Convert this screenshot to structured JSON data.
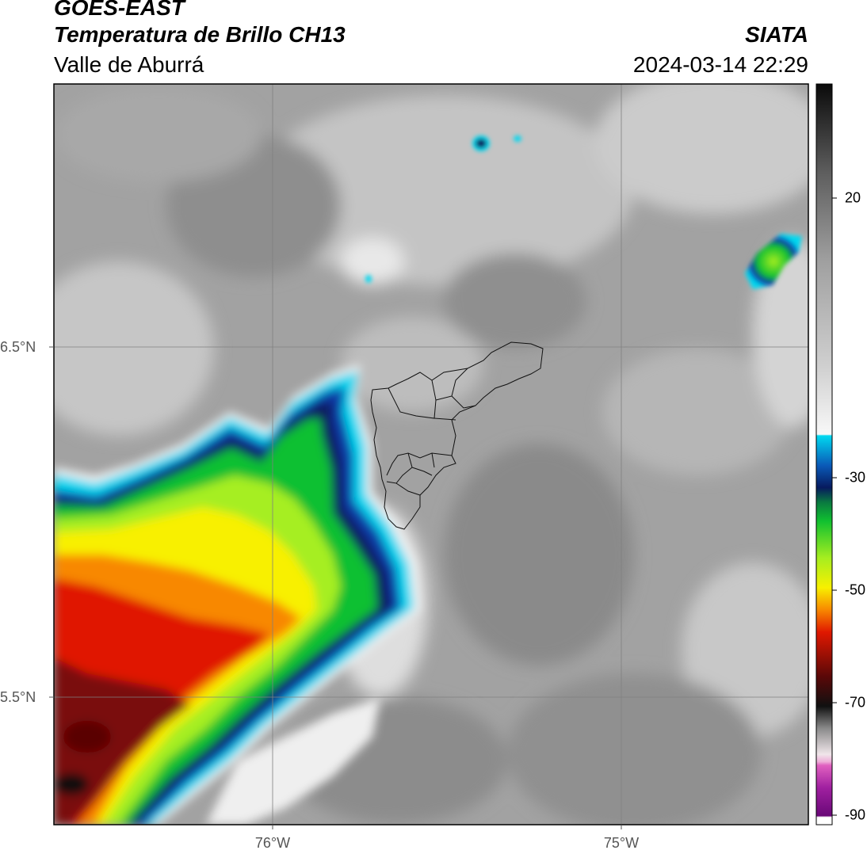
{
  "header": {
    "satellite": "GOES-EAST",
    "product": "Temperatura de Brillo CH13",
    "region": "Valle de Aburrá",
    "brand": "SIATA",
    "datetime": "2024-03-14 22:29"
  },
  "map": {
    "lat_labels": [
      "6.5°N",
      "5.5°N"
    ],
    "lon_labels": [
      "76°W",
      "75°W"
    ]
  },
  "colorbar": {
    "tick_labels": [
      "20",
      "-30",
      "-50",
      "-70",
      "-90"
    ],
    "colors": {
      "warm_gray": "#9a9a9a",
      "white": "#f4f4f4",
      "cyan": "#00d8f0",
      "blue": "#0a3aa8",
      "navy": "#071a5e",
      "green": "#10c030",
      "lime": "#a6ee20",
      "yellow": "#f8f000",
      "orange": "#f88800",
      "red": "#e01800",
      "darkred": "#7a0808",
      "black": "#101010",
      "pink": "#e060c0",
      "purple": "#7a1080"
    }
  }
}
